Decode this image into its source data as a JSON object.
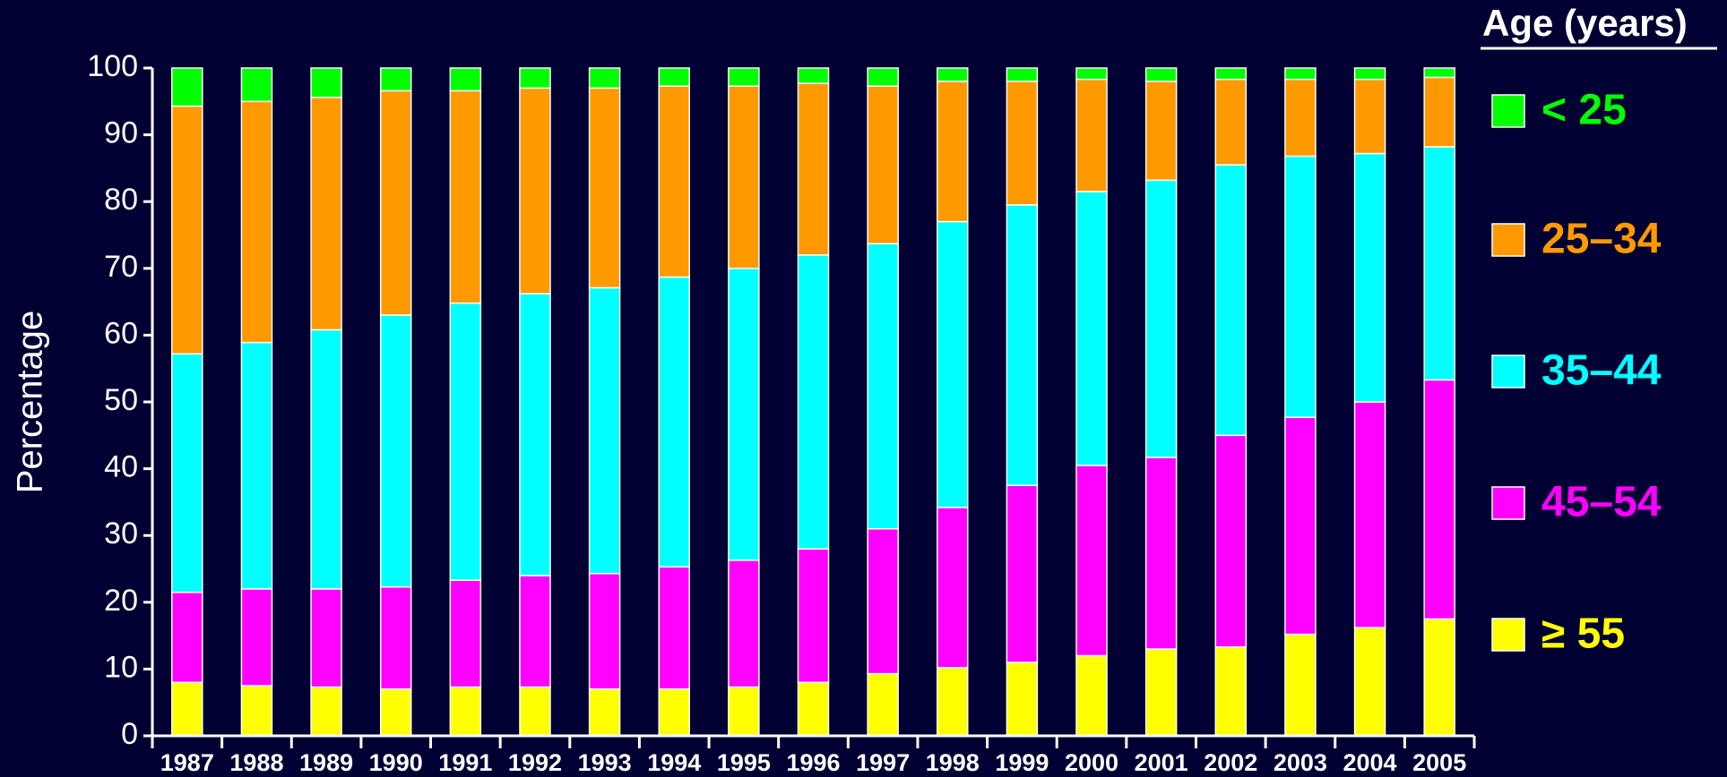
{
  "chart_data": {
    "type": "stacked_bar",
    "y_label": "Percentage",
    "legend_title": "Age (years)",
    "categories": [
      "1987",
      "1988",
      "1989",
      "1990",
      "1991",
      "1992",
      "1993",
      "1994",
      "1995",
      "1996",
      "1997",
      "1998",
      "1999",
      "2000",
      "2001",
      "2002",
      "2003",
      "2004",
      "2005"
    ],
    "series": [
      {
        "name": "< 25",
        "color": "#00ff00",
        "values": [
          5.7,
          5,
          4.4,
          3.4,
          3.4,
          3,
          3,
          2.7,
          2.7,
          2.3,
          2.7,
          2,
          2,
          1.7,
          2,
          1.7,
          1.7,
          1.7,
          1.4
        ]
      },
      {
        "name": "25–34",
        "color": "#ff9900",
        "values": [
          37.1,
          36.1,
          34.8,
          33.6,
          31.8,
          30.8,
          29.9,
          28.6,
          27.3,
          25.7,
          23.6,
          21,
          18.5,
          16.8,
          14.8,
          12.8,
          11.5,
          11.1,
          10.4
        ]
      },
      {
        "name": "35–44",
        "color": "#00ffff",
        "values": [
          35.7,
          36.9,
          38.8,
          40.7,
          41.5,
          42.2,
          42.8,
          43.4,
          43.7,
          44,
          42.7,
          42.8,
          42,
          41,
          41.5,
          40.5,
          39.1,
          37.2,
          34.9
        ]
      },
      {
        "name": "45–54",
        "color": "#ff00ff",
        "values": [
          13.5,
          14.5,
          14.7,
          15.3,
          16,
          16.7,
          17.3,
          18.3,
          19,
          20,
          21.7,
          24,
          26.5,
          28.5,
          28.7,
          31.7,
          32.5,
          33.8,
          35.8
        ]
      },
      {
        "name": "≥ 55",
        "color": "#ffff00",
        "values": [
          8,
          7.5,
          7.3,
          7,
          7.3,
          7.3,
          7,
          7,
          7.3,
          8,
          9.3,
          10.2,
          11,
          12,
          13,
          13.3,
          15.2,
          16.2,
          17.5
        ]
      }
    ],
    "ylim": [
      0,
      100
    ],
    "yticks": [
      0,
      10,
      20,
      30,
      40,
      50,
      60,
      70,
      80,
      90,
      100
    ]
  }
}
